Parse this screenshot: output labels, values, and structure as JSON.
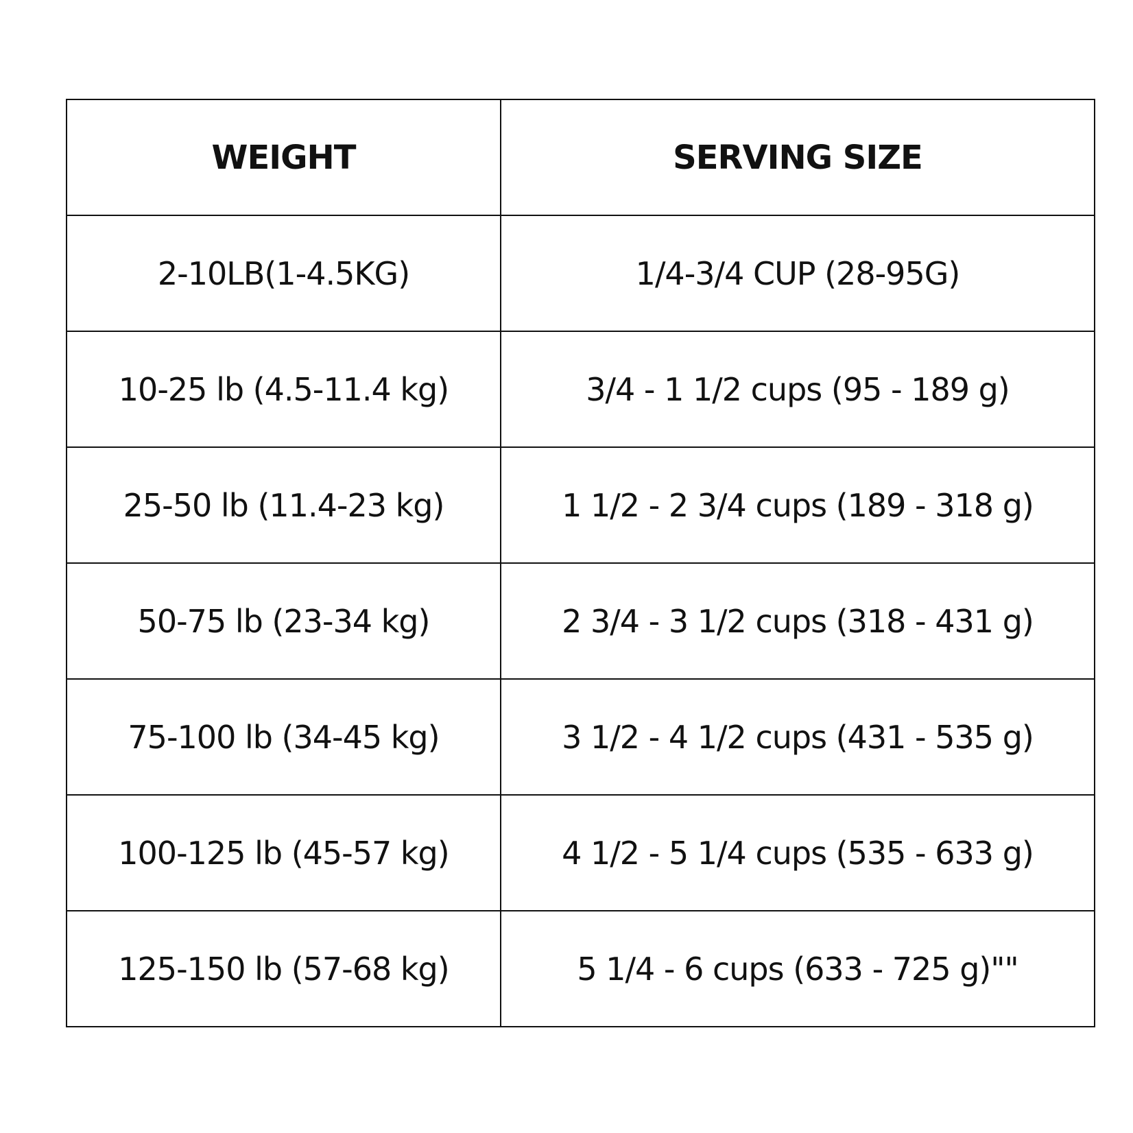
{
  "table": {
    "header": [
      "WEIGHT",
      "SERVING SIZE"
    ],
    "rows": [
      [
        "2-10LB(1-4.5KG)",
        "1/4-3/4 CUP (28-95G)"
      ],
      [
        "10-25 lb (4.5-11.4 kg)",
        "3/4 - 1 1/2 cups (95 - 189 g)"
      ],
      [
        "25-50 lb (11.4-23 kg)",
        "1 1/2 - 2 3/4 cups (189 - 318 g)"
      ],
      [
        "50-75 lb (23-34 kg)",
        "2 3/4 - 3 1/2 cups (318 - 431 g)"
      ],
      [
        "75-100 lb (34-45 kg)",
        "3 1/2 - 4 1/2 cups (431 - 535 g)"
      ],
      [
        "100-125 lb (45-57 kg)",
        "4 1/2 - 5 1/4 cups (535 - 633 g)"
      ],
      [
        "125-150 lb (57-68 kg)",
        "5 1/4 - 6 cups (633 - 725 g)\"\""
      ]
    ]
  }
}
